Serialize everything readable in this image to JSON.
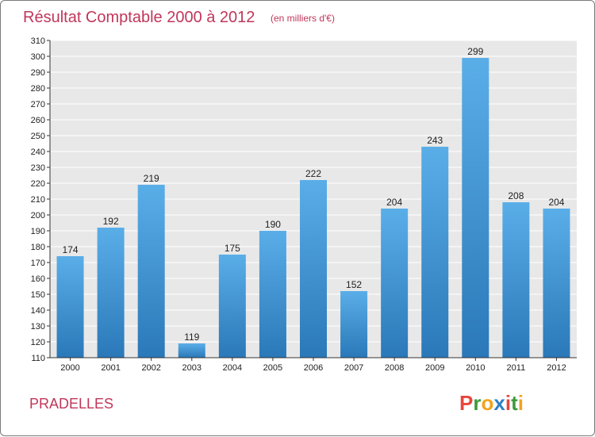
{
  "chart_data": {
    "type": "bar",
    "title": "Résultat Comptable 2000 à 2012",
    "subtitle": "(en milliers d'€)",
    "categories": [
      "2000",
      "2001",
      "2002",
      "2003",
      "2004",
      "2005",
      "2006",
      "2007",
      "2008",
      "2009",
      "2010",
      "2011",
      "2012"
    ],
    "values": [
      174,
      192,
      219,
      119,
      175,
      190,
      222,
      152,
      204,
      243,
      299,
      208,
      204
    ],
    "ylim": [
      110,
      310
    ],
    "ytick_step": 10,
    "grid": true,
    "bar_color_top": "#5aaee8",
    "bar_color_bottom": "#2a78b8",
    "xlabel": "",
    "ylabel": ""
  },
  "footer": {
    "commune": "PRADELLES",
    "logo_text": "Proxiti",
    "logo_colors": [
      "#e8463c",
      "#3a9a3a",
      "#f2a21e",
      "#2f7fc4",
      "#e8463c",
      "#3a9a3a",
      "#f2a21e"
    ]
  },
  "colors": {
    "accent": "#c0365a",
    "plot_background": "#e8e8e8",
    "grid": "#ffffff"
  }
}
